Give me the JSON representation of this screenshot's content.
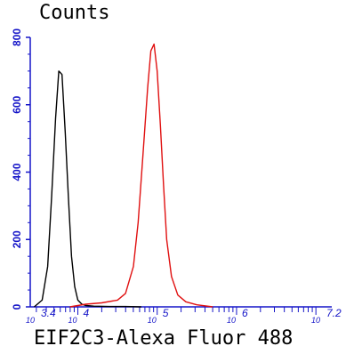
{
  "chart_data": {
    "type": "line",
    "ylabel": "Counts",
    "xlabel": "EIF2C3-Alexa Fluor 488",
    "x_scale": "log",
    "xlim": [
      3.4,
      7.2
    ],
    "ylim": [
      0,
      800
    ],
    "y_ticks": [
      0,
      200,
      400,
      600,
      800
    ],
    "x_ticks": [
      {
        "base": "10",
        "exp": "3.4",
        "value": 3.4
      },
      {
        "base": "10",
        "exp": "4",
        "value": 4
      },
      {
        "base": "10",
        "exp": "5",
        "value": 5
      },
      {
        "base": "10",
        "exp": "6",
        "value": 6
      },
      {
        "base": "10",
        "exp": "7.2",
        "value": 7.2
      }
    ],
    "colors": {
      "axis": "#1515c8",
      "control": "#000000",
      "sample": "#e01010"
    },
    "series": [
      {
        "color": "#000000",
        "x": [
          3.45,
          3.55,
          3.62,
          3.67,
          3.72,
          3.76,
          3.8,
          3.84,
          3.88,
          3.92,
          3.96,
          4.0,
          4.05,
          4.1,
          4.2,
          4.4,
          4.6,
          4.8
        ],
        "y": [
          0,
          20,
          120,
          330,
          560,
          700,
          690,
          520,
          330,
          150,
          60,
          20,
          8,
          4,
          2,
          1,
          1,
          0
        ]
      },
      {
        "color": "#e01010",
        "x": [
          3.9,
          4.1,
          4.3,
          4.5,
          4.6,
          4.7,
          4.76,
          4.82,
          4.88,
          4.92,
          4.96,
          5.0,
          5.04,
          5.08,
          5.12,
          5.18,
          5.26,
          5.36,
          5.5,
          5.7
        ],
        "y": [
          0,
          8,
          12,
          20,
          40,
          120,
          250,
          450,
          650,
          760,
          780,
          700,
          540,
          360,
          200,
          90,
          35,
          15,
          6,
          0
        ]
      }
    ]
  }
}
